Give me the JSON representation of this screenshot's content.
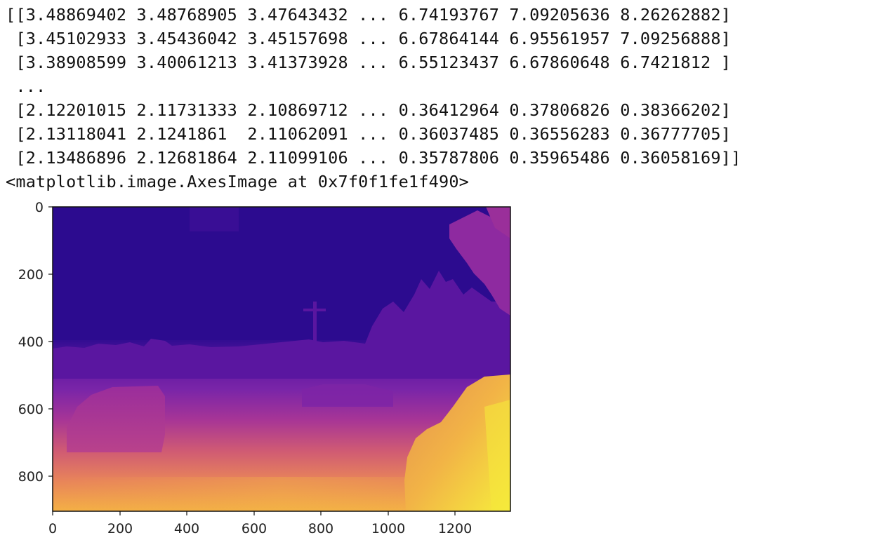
{
  "notebook_output": {
    "array_lines": [
      "[[3.48869402 3.48768905 3.47643432 ... 6.74193767 7.09205636 8.26262882]",
      " [3.45102933 3.45436042 3.45157698 ... 6.67864144 6.95561957 7.09256888]",
      " [3.38908599 3.40061213 3.41373928 ... 6.55123437 6.67860648 6.7421812 ]",
      " ...",
      " [2.12201015 2.11731333 2.10869712 ... 0.36412964 0.37806826 0.38366202]",
      " [2.13118041 2.1241861  2.11062091 ... 0.36037485 0.36556283 0.36777705]",
      " [2.13486896 2.12681864 2.11099106 ... 0.35787806 0.35965486 0.36058169]]"
    ],
    "repr_text": "<matplotlib.image.AxesImage at 0x7f0f1fe1f490>"
  },
  "image_plot": {
    "colormap": "plasma",
    "xlim": [
      0,
      1360
    ],
    "ylim_top_to_bottom": [
      0,
      905
    ],
    "x_ticks": [
      "0",
      "200",
      "400",
      "600",
      "800",
      "1000",
      "1200"
    ],
    "y_ticks": [
      "0",
      "200",
      "400",
      "600",
      "800"
    ],
    "colors": {
      "deep": "#2c0b8f",
      "mid_purple": "#6a1fa6",
      "magenta": "#a73596",
      "pink": "#d05b73",
      "orange": "#f0924c",
      "yellow": "#f5e83a"
    }
  }
}
